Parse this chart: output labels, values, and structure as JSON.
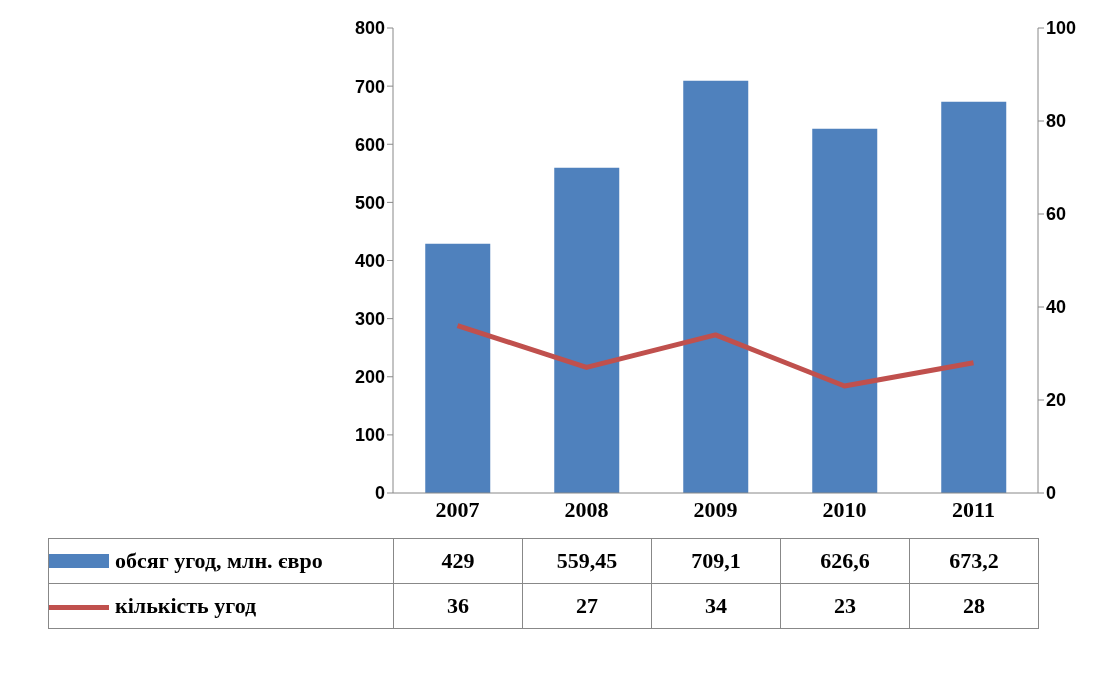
{
  "chart_data": {
    "type": "bar",
    "categories": [
      "2007",
      "2008",
      "2009",
      "2010",
      "2011"
    ],
    "series": [
      {
        "name": "обсяг угод, млн. євро",
        "color": "#4f81bd",
        "values": [
          429,
          559.45,
          709.1,
          626.6,
          673.2
        ],
        "value_labels": [
          "429",
          "559,45",
          "709,1",
          "626,6",
          "673,2"
        ]
      },
      {
        "name": "кількість угод",
        "type": "line",
        "axis": "y2",
        "color": "#c0504d",
        "values": [
          36,
          27,
          34,
          23,
          28
        ],
        "value_labels": [
          "36",
          "27",
          "34",
          "23",
          "28"
        ]
      }
    ],
    "ylim": [
      0,
      800
    ],
    "yticks": [
      0,
      100,
      200,
      300,
      400,
      500,
      600,
      700,
      800
    ],
    "y2lim": [
      0,
      100
    ],
    "y2ticks": [
      0,
      20,
      40,
      60,
      80,
      100
    ],
    "grid": false,
    "legend": "bottom",
    "marker": "none"
  }
}
